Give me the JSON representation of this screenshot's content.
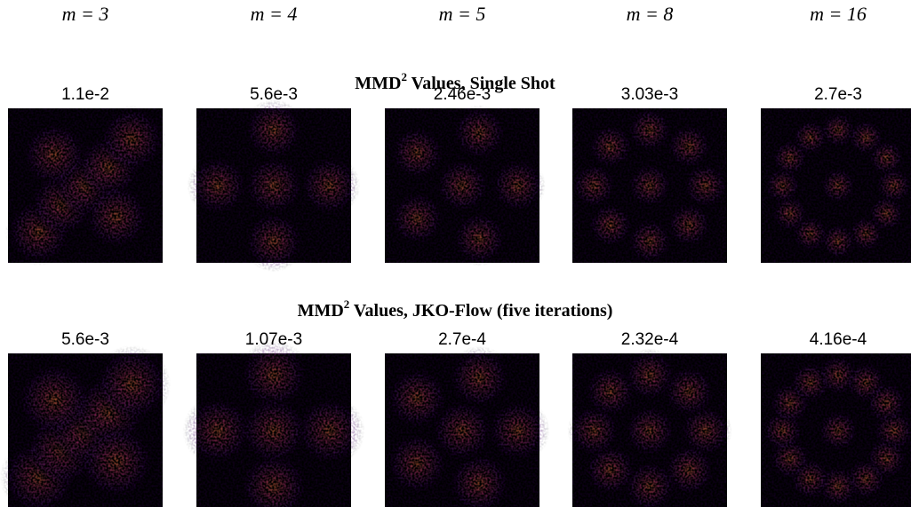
{
  "header": {
    "columns": [
      "m = 3",
      "m = 4",
      "m = 5",
      "m = 8",
      "m = 16"
    ]
  },
  "sections": [
    {
      "title": {
        "main": "MMD",
        "sup": "2",
        "rest": " Values, Single Shot"
      },
      "labels": [
        "1.1e-2",
        "5.6e-3",
        "2.46e-3",
        "3.03e-3",
        "2.7e-3"
      ]
    },
    {
      "title": {
        "main": "MMD",
        "sup": "2",
        "rest": " Values, JKO-Flow (five iterations)"
      },
      "labels": [
        "5.6e-3",
        "1.07e-3",
        "2.7e-4",
        "2.32e-4",
        "4.16e-4"
      ]
    }
  ]
}
